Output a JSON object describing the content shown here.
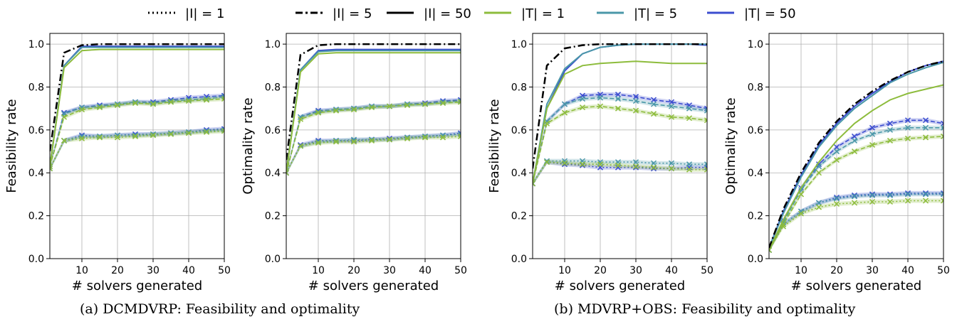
{
  "legend": [
    {
      "label": "|I| = 1",
      "color": "#000000",
      "dash": "dotted"
    },
    {
      "label": "|I| = 5",
      "color": "#000000",
      "dash": "dashdot"
    },
    {
      "label": "|I| = 50",
      "color": "#000000",
      "dash": "solid"
    },
    {
      "label": "|T| = 1",
      "color": "#8dbc3c",
      "dash": "solid"
    },
    {
      "label": "|T| = 5",
      "color": "#4a97a8",
      "dash": "solid"
    },
    {
      "label": "|T| = 50",
      "color": "#3b4ccf",
      "dash": "solid"
    }
  ],
  "colors": {
    "T1": "#8dbc3c",
    "T5": "#4a97a8",
    "T50": "#3b4ccf",
    "I": "#000000"
  },
  "captions": {
    "a": "(a) DCMDVRP: Feasibility and optimality",
    "b": "(b) MDVRP+OBS: Feasibility and optimality"
  },
  "chart_data": [
    {
      "type": "line",
      "ylabel": "Feasibility rate",
      "xlabel": "# solvers generated",
      "xlim": [
        1,
        50
      ],
      "ylim": [
        0,
        1.05
      ],
      "xticks": [
        10,
        20,
        30,
        40,
        50
      ],
      "yticks": [
        "0.0",
        "0.2",
        "0.4",
        "0.6",
        "0.8",
        "1.0"
      ],
      "grid": true,
      "x": [
        1,
        5,
        10,
        15,
        20,
        25,
        30,
        35,
        40,
        45,
        50
      ],
      "series": [
        {
          "name": "|I| = 5",
          "style": "I5",
          "values": [
            0.5,
            0.96,
            0.995,
            1.0,
            1.0,
            1.0,
            1.0,
            1.0,
            1.0,
            1.0,
            1.0
          ]
        },
        {
          "name": "|I| = 50, |T| = 1",
          "style": "T1_I50",
          "values": [
            0.43,
            0.89,
            0.97,
            0.975,
            0.975,
            0.975,
            0.975,
            0.975,
            0.975,
            0.975,
            0.975
          ]
        },
        {
          "name": "|I| = 50, |T| = 5",
          "style": "T5_I50",
          "values": [
            0.43,
            0.9,
            0.985,
            0.985,
            0.985,
            0.985,
            0.985,
            0.985,
            0.985,
            0.985,
            0.985
          ]
        },
        {
          "name": "|I| = 50, |T| = 50",
          "style": "T50_I50",
          "values": [
            0.43,
            0.9,
            0.99,
            0.99,
            0.99,
            0.99,
            0.99,
            0.99,
            0.99,
            0.99,
            0.99
          ]
        },
        {
          "name": "|I| = 5, |T| = 1",
          "style": "T1_I5",
          "values": [
            0.43,
            0.66,
            0.695,
            0.705,
            0.715,
            0.725,
            0.72,
            0.73,
            0.735,
            0.74,
            0.745
          ]
        },
        {
          "name": "|I| = 5, |T| = 5",
          "style": "T5_I5",
          "values": [
            0.43,
            0.675,
            0.705,
            0.71,
            0.72,
            0.73,
            0.725,
            0.735,
            0.74,
            0.745,
            0.755
          ]
        },
        {
          "name": "|I| = 5, |T| = 50",
          "style": "T50_I5",
          "values": [
            0.43,
            0.68,
            0.705,
            0.715,
            0.72,
            0.73,
            0.73,
            0.74,
            0.75,
            0.755,
            0.76
          ]
        },
        {
          "name": "|I| = 1, |T| = 1",
          "style": "T1_I1",
          "values": [
            0.42,
            0.55,
            0.56,
            0.565,
            0.565,
            0.57,
            0.575,
            0.58,
            0.585,
            0.59,
            0.595
          ]
        },
        {
          "name": "|I| = 1, |T| = 5",
          "style": "T5_I1",
          "values": [
            0.42,
            0.55,
            0.57,
            0.57,
            0.575,
            0.575,
            0.58,
            0.585,
            0.59,
            0.595,
            0.6
          ]
        },
        {
          "name": "|I| = 1, |T| = 50",
          "style": "T50_I1",
          "values": [
            0.42,
            0.55,
            0.575,
            0.57,
            0.575,
            0.58,
            0.58,
            0.585,
            0.59,
            0.6,
            0.605
          ]
        }
      ]
    },
    {
      "type": "line",
      "ylabel": "Optimality rate",
      "xlabel": "# solvers generated",
      "xlim": [
        1,
        50
      ],
      "ylim": [
        0,
        1.05
      ],
      "xticks": [
        10,
        20,
        30,
        40,
        50
      ],
      "yticks": [
        "0.0",
        "0.2",
        "0.4",
        "0.6",
        "0.8",
        "1.0"
      ],
      "grid": true,
      "x": [
        1,
        5,
        10,
        15,
        20,
        25,
        30,
        35,
        40,
        45,
        50
      ],
      "series": [
        {
          "name": "|I| = 5",
          "style": "I5",
          "values": [
            0.46,
            0.95,
            0.995,
            1.0,
            1.0,
            1.0,
            1.0,
            1.0,
            1.0,
            1.0,
            1.0
          ]
        },
        {
          "name": "|I| = 50, |T| = 1",
          "style": "T1_I50",
          "values": [
            0.4,
            0.87,
            0.955,
            0.96,
            0.96,
            0.96,
            0.96,
            0.96,
            0.96,
            0.96,
            0.96
          ]
        },
        {
          "name": "|I| = 50, |T| = 5",
          "style": "T5_I50",
          "values": [
            0.4,
            0.88,
            0.965,
            0.97,
            0.97,
            0.97,
            0.97,
            0.97,
            0.97,
            0.97,
            0.97
          ]
        },
        {
          "name": "|I| = 50, |T| = 50",
          "style": "T50_I50",
          "values": [
            0.4,
            0.88,
            0.97,
            0.975,
            0.975,
            0.975,
            0.975,
            0.975,
            0.975,
            0.975,
            0.975
          ]
        },
        {
          "name": "|I| = 5, |T| = 1",
          "style": "T1_I5",
          "values": [
            0.4,
            0.65,
            0.68,
            0.69,
            0.695,
            0.705,
            0.71,
            0.715,
            0.72,
            0.725,
            0.73
          ]
        },
        {
          "name": "|I| = 5, |T| = 5",
          "style": "T5_I5",
          "values": [
            0.4,
            0.66,
            0.685,
            0.695,
            0.7,
            0.71,
            0.71,
            0.72,
            0.72,
            0.73,
            0.735
          ]
        },
        {
          "name": "|I| = 5, |T| = 50",
          "style": "T50_I5",
          "values": [
            0.4,
            0.66,
            0.69,
            0.695,
            0.7,
            0.71,
            0.71,
            0.72,
            0.725,
            0.735,
            0.74
          ]
        },
        {
          "name": "|I| = 1, |T| = 1",
          "style": "T1_I1",
          "values": [
            0.4,
            0.525,
            0.54,
            0.545,
            0.545,
            0.55,
            0.555,
            0.56,
            0.565,
            0.565,
            0.57
          ]
        },
        {
          "name": "|I| = 1, |T| = 5",
          "style": "T5_I1",
          "values": [
            0.4,
            0.525,
            0.545,
            0.55,
            0.555,
            0.555,
            0.555,
            0.565,
            0.57,
            0.575,
            0.58
          ]
        },
        {
          "name": "|I| = 1, |T| = 50",
          "style": "T50_I1",
          "values": [
            0.4,
            0.53,
            0.55,
            0.55,
            0.55,
            0.555,
            0.56,
            0.565,
            0.57,
            0.575,
            0.585
          ]
        }
      ]
    },
    {
      "type": "line",
      "ylabel": "Feasibility rate",
      "xlabel": "# solvers generated",
      "xlim": [
        1,
        50
      ],
      "ylim": [
        0,
        1.05
      ],
      "xticks": [
        10,
        20,
        30,
        40,
        50
      ],
      "yticks": [
        "0.0",
        "0.2",
        "0.4",
        "0.6",
        "0.8",
        "1.0"
      ],
      "grid": true,
      "x": [
        1,
        5,
        10,
        15,
        20,
        25,
        30,
        35,
        40,
        45,
        50
      ],
      "series": [
        {
          "name": "|I| = 5",
          "style": "I5",
          "values": [
            0.42,
            0.9,
            0.98,
            0.995,
            1.0,
            1.0,
            1.0,
            1.0,
            1.0,
            1.0,
            1.0
          ]
        },
        {
          "name": "|I| = 50, |T| = 1",
          "style": "T1_I50",
          "values": [
            0.35,
            0.7,
            0.86,
            0.9,
            0.91,
            0.915,
            0.92,
            0.915,
            0.91,
            0.91,
            0.91
          ]
        },
        {
          "name": "|I| = 50, |T| = 5",
          "style": "T5_I50",
          "values": [
            0.35,
            0.72,
            0.885,
            0.955,
            0.985,
            0.995,
            1.0,
            1.0,
            1.0,
            1.0,
            1.0
          ]
        },
        {
          "name": "|I| = 50, |T| = 50",
          "style": "T50_I50",
          "values": [
            0.35,
            0.7,
            0.875,
            0.955,
            0.985,
            0.995,
            1.0,
            1.0,
            1.0,
            1.0,
            0.995
          ]
        },
        {
          "name": "|I| = 5, |T| = 1",
          "style": "T1_I5",
          "values": [
            0.35,
            0.63,
            0.68,
            0.705,
            0.71,
            0.7,
            0.69,
            0.675,
            0.66,
            0.655,
            0.645
          ]
        },
        {
          "name": "|I| = 5, |T| = 5",
          "style": "T5_I5",
          "values": [
            0.35,
            0.64,
            0.72,
            0.745,
            0.75,
            0.745,
            0.735,
            0.72,
            0.71,
            0.7,
            0.69
          ]
        },
        {
          "name": "|I| = 5, |T| = 50",
          "style": "T50_I5",
          "values": [
            0.35,
            0.64,
            0.72,
            0.76,
            0.765,
            0.765,
            0.755,
            0.74,
            0.73,
            0.715,
            0.7
          ]
        },
        {
          "name": "|I| = 1, |T| = 1",
          "style": "T1_I1",
          "values": [
            0.35,
            0.45,
            0.445,
            0.44,
            0.44,
            0.435,
            0.43,
            0.425,
            0.42,
            0.415,
            0.415
          ]
        },
        {
          "name": "|I| = 1, |T| = 5",
          "style": "T5_I1",
          "values": [
            0.35,
            0.455,
            0.455,
            0.455,
            0.45,
            0.45,
            0.45,
            0.445,
            0.445,
            0.44,
            0.44
          ]
        },
        {
          "name": "|I| = 1, |T| = 50",
          "style": "T50_I1",
          "values": [
            0.35,
            0.45,
            0.44,
            0.435,
            0.425,
            0.425,
            0.425,
            0.42,
            0.42,
            0.425,
            0.425
          ]
        }
      ]
    },
    {
      "type": "line",
      "ylabel": "Optimality rate",
      "xlabel": "# solvers generated",
      "xlim": [
        1,
        50
      ],
      "ylim": [
        0,
        1.05
      ],
      "xticks": [
        10,
        20,
        30,
        40,
        50
      ],
      "yticks": [
        "0.0",
        "0.2",
        "0.4",
        "0.6",
        "0.8",
        "1.0"
      ],
      "grid": true,
      "x": [
        1,
        5,
        10,
        15,
        20,
        25,
        30,
        35,
        40,
        45,
        50
      ],
      "series": [
        {
          "name": "|I| = 5",
          "style": "I5",
          "values": [
            0.05,
            0.23,
            0.4,
            0.54,
            0.64,
            0.72,
            0.78,
            0.83,
            0.87,
            0.9,
            0.92
          ]
        },
        {
          "name": "|I| = 50, |T| = 1",
          "style": "T1_I50",
          "values": [
            0.04,
            0.18,
            0.33,
            0.45,
            0.55,
            0.63,
            0.69,
            0.74,
            0.77,
            0.79,
            0.81
          ]
        },
        {
          "name": "|I| = 50, |T| = 5",
          "style": "T5_I50",
          "values": [
            0.05,
            0.21,
            0.38,
            0.52,
            0.62,
            0.7,
            0.76,
            0.82,
            0.86,
            0.89,
            0.915
          ]
        },
        {
          "name": "|I| = 50, |T| = 50",
          "style": "T50_I50",
          "values": [
            0.05,
            0.22,
            0.39,
            0.53,
            0.63,
            0.71,
            0.77,
            0.825,
            0.87,
            0.9,
            0.92
          ]
        },
        {
          "name": "|I| = 5, |T| = 1",
          "style": "T1_I5",
          "values": [
            0.04,
            0.16,
            0.3,
            0.4,
            0.46,
            0.5,
            0.53,
            0.55,
            0.56,
            0.565,
            0.57
          ]
        },
        {
          "name": "|I| = 5, |T| = 5",
          "style": "T5_I5",
          "values": [
            0.04,
            0.17,
            0.32,
            0.43,
            0.5,
            0.55,
            0.58,
            0.6,
            0.61,
            0.61,
            0.61
          ]
        },
        {
          "name": "|I| = 5, |T| = 50",
          "style": "T50_I5",
          "values": [
            0.04,
            0.18,
            0.33,
            0.44,
            0.52,
            0.57,
            0.61,
            0.63,
            0.645,
            0.645,
            0.63
          ]
        },
        {
          "name": "|I| = 1, |T| = 1",
          "style": "T1_I1",
          "values": [
            0.04,
            0.15,
            0.21,
            0.24,
            0.255,
            0.26,
            0.265,
            0.265,
            0.27,
            0.27,
            0.27
          ]
        },
        {
          "name": "|I| = 1, |T| = 5",
          "style": "T5_I1",
          "values": [
            0.04,
            0.16,
            0.22,
            0.26,
            0.28,
            0.29,
            0.295,
            0.295,
            0.3,
            0.3,
            0.3
          ]
        },
        {
          "name": "|I| = 1, |T| = 50",
          "style": "T50_I1",
          "values": [
            0.04,
            0.16,
            0.22,
            0.26,
            0.285,
            0.295,
            0.3,
            0.3,
            0.305,
            0.305,
            0.305
          ]
        }
      ]
    }
  ]
}
